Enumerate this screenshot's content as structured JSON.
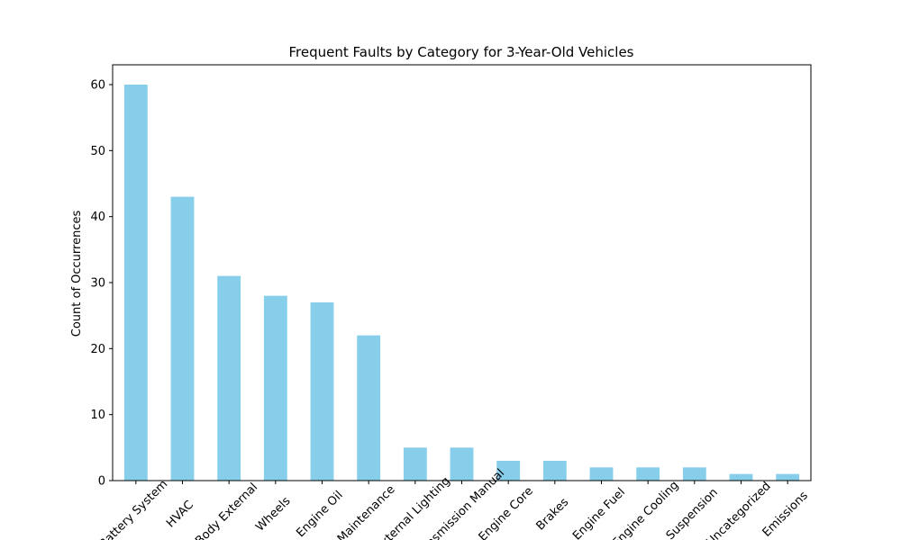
{
  "chart_data": {
    "type": "bar",
    "title": "Frequent Faults by Category for 3-Year-Old Vehicles",
    "xlabel": "",
    "ylabel": "Count of Occurrences",
    "categories": [
      "Battery System",
      "HVAC",
      "Body External",
      "Wheels",
      "Engine Oil",
      "Maintenance",
      "External Lighting",
      "Transmission Manual",
      "Engine Core",
      "Brakes",
      "Engine Fuel",
      "Engine Cooling",
      "Suspension",
      "Uncategorized",
      "Emissions"
    ],
    "values": [
      60,
      43,
      31,
      28,
      27,
      22,
      5,
      5,
      3,
      3,
      2,
      2,
      2,
      1,
      1
    ],
    "yticks": [
      0,
      10,
      20,
      30,
      40,
      50,
      60
    ],
    "ylim": [
      0,
      63
    ],
    "bar_color": "#87ceeb",
    "grid": false,
    "legend": "none"
  }
}
